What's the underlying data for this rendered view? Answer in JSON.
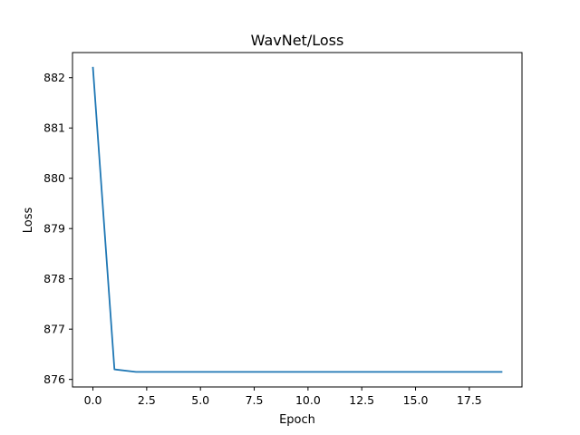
{
  "chart_data": {
    "type": "line",
    "title": "WavNet/Loss",
    "xlabel": "Epoch",
    "ylabel": "Loss",
    "xlim": [
      -0.95,
      19.95
    ],
    "ylim": [
      875.85,
      882.5
    ],
    "xticks": [
      0,
      2.5,
      5,
      7.5,
      10,
      12.5,
      15,
      17.5
    ],
    "xtick_labels": [
      "0.0",
      "2.5",
      "5.0",
      "7.5",
      "10.0",
      "12.5",
      "15.0",
      "17.5"
    ],
    "yticks": [
      876,
      877,
      878,
      879,
      880,
      881,
      882
    ],
    "ytick_labels": [
      "876",
      "877",
      "878",
      "879",
      "880",
      "881",
      "882"
    ],
    "grid": false,
    "series": [
      {
        "color": "#1f77b4",
        "x": [
          0,
          1,
          2,
          3,
          4,
          5,
          6,
          7,
          8,
          9,
          10,
          11,
          12,
          13,
          14,
          15,
          16,
          17,
          18,
          19
        ],
        "values": [
          882.2,
          876.2,
          876.15,
          876.15,
          876.15,
          876.15,
          876.15,
          876.15,
          876.15,
          876.15,
          876.15,
          876.15,
          876.15,
          876.15,
          876.15,
          876.15,
          876.15,
          876.15,
          876.15,
          876.15
        ]
      }
    ]
  }
}
